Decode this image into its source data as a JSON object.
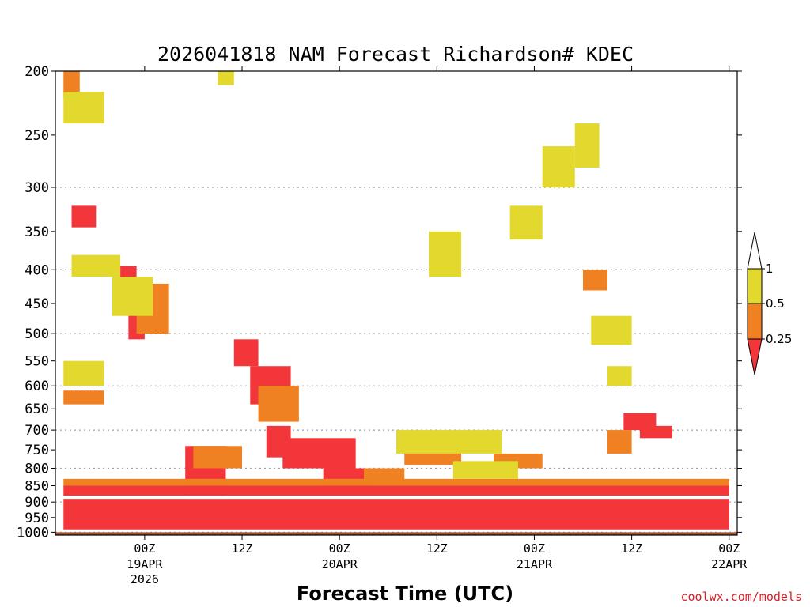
{
  "chart_data": {
    "type": "heatmap",
    "title": "2026041818 NAM Forecast Richardson# KDEC",
    "xlabel": "Forecast Time (UTC)",
    "ylabel": "",
    "credit": "coolwx.com/models",
    "y_axis": {
      "range": [
        200,
        1010
      ],
      "scale": "log-pressure",
      "ticks": [
        "200",
        "250",
        "300",
        "350",
        "400",
        "450",
        "500",
        "550",
        "600",
        "650",
        "700",
        "750",
        "800",
        "850",
        "900",
        "950",
        "1000"
      ],
      "gridlines": [
        300,
        400,
        500,
        600,
        700,
        800,
        900,
        1000
      ]
    },
    "x_axis": {
      "range_hours": [
        -5,
        79
      ],
      "ticks": [
        {
          "hour": 6,
          "label": "00Z",
          "sublabels": [
            "19APR",
            "2026"
          ]
        },
        {
          "hour": 18,
          "label": "12Z",
          "sublabels": []
        },
        {
          "hour": 30,
          "label": "00Z",
          "sublabels": [
            "20APR"
          ]
        },
        {
          "hour": 42,
          "label": "12Z",
          "sublabels": []
        },
        {
          "hour": 54,
          "label": "00Z",
          "sublabels": [
            "21APR"
          ]
        },
        {
          "hour": 66,
          "label": "12Z",
          "sublabels": []
        },
        {
          "hour": 78,
          "label": "00Z",
          "sublabels": [
            "22APR"
          ]
        }
      ]
    },
    "legend": {
      "placement": "right",
      "thresholds": [
        "1",
        "0.5",
        "0.25"
      ],
      "colors": {
        "above_1": "#ffffff",
        "0.5_to_1": "#e3d82d",
        "0.25_to_0.5": "#ef8122",
        "below_0.25": "#f2363a"
      }
    },
    "colors": {
      "ground": "#a0522d",
      "gridline": "#a0a0a0"
    },
    "series": [
      {
        "name": "Ri < 0.25",
        "color": "#f2363a",
        "regions": [
          {
            "hours": [
              -3,
              0
            ],
            "p": [
              320,
              345
            ]
          },
          {
            "hours": [
              3,
              5
            ],
            "p": [
              395,
              445
            ]
          },
          {
            "hours": [
              4,
              6
            ],
            "p": [
              450,
              510
            ]
          },
          {
            "hours": [
              17,
              20
            ],
            "p": [
              510,
              560
            ]
          },
          {
            "hours": [
              19,
              24
            ],
            "p": [
              560,
              640
            ]
          },
          {
            "hours": [
              21,
              24
            ],
            "p": [
              690,
              770
            ]
          },
          {
            "hours": [
              23,
              32
            ],
            "p": [
              720,
              800
            ]
          },
          {
            "hours": [
              28,
              34
            ],
            "p": [
              800,
              870
            ]
          },
          {
            "hours": [
              11,
              16
            ],
            "p": [
              740,
              880
            ]
          },
          {
            "hours": [
              65,
              69
            ],
            "p": [
              660,
              700
            ]
          },
          {
            "hours": [
              67,
              71
            ],
            "p": [
              690,
              720
            ]
          },
          {
            "hours": [
              -4,
              78
            ],
            "p": [
              890,
              990
            ]
          },
          {
            "hours": [
              -4,
              78
            ],
            "p": [
              850,
              880
            ]
          }
        ]
      },
      {
        "name": "0.25 <= Ri < 0.5",
        "color": "#ef8122",
        "regions": [
          {
            "hours": [
              -4,
              -2
            ],
            "p": [
              200,
              220
            ]
          },
          {
            "hours": [
              -4,
              1
            ],
            "p": [
              610,
              640
            ]
          },
          {
            "hours": [
              5,
              9
            ],
            "p": [
              420,
              500
            ]
          },
          {
            "hours": [
              20,
              25
            ],
            "p": [
              600,
              680
            ]
          },
          {
            "hours": [
              12,
              18
            ],
            "p": [
              740,
              800
            ]
          },
          {
            "hours": [
              33,
              38
            ],
            "p": [
              800,
              840
            ]
          },
          {
            "hours": [
              38,
              45
            ],
            "p": [
              740,
              790
            ]
          },
          {
            "hours": [
              49,
              55
            ],
            "p": [
              760,
              800
            ]
          },
          {
            "hours": [
              57,
              58
            ],
            "p": [
              270,
              290
            ]
          },
          {
            "hours": [
              60,
              63
            ],
            "p": [
              400,
              430
            ]
          },
          {
            "hours": [
              63,
              66
            ],
            "p": [
              700,
              760
            ]
          },
          {
            "hours": [
              -4,
              78
            ],
            "p": [
              830,
              850
            ]
          }
        ]
      },
      {
        "name": "0.5 <= Ri < 1",
        "color": "#e3d82d",
        "regions": [
          {
            "hours": [
              -4,
              1
            ],
            "p": [
              215,
              240
            ]
          },
          {
            "hours": [
              -3,
              3
            ],
            "p": [
              380,
              410
            ]
          },
          {
            "hours": [
              2,
              7
            ],
            "p": [
              410,
              470
            ]
          },
          {
            "hours": [
              -4,
              1
            ],
            "p": [
              550,
              600
            ]
          },
          {
            "hours": [
              15,
              17
            ],
            "p": [
              200,
              210
            ]
          },
          {
            "hours": [
              41,
              45
            ],
            "p": [
              350,
              410
            ]
          },
          {
            "hours": [
              51,
              55
            ],
            "p": [
              320,
              360
            ]
          },
          {
            "hours": [
              55,
              59
            ],
            "p": [
              260,
              300
            ]
          },
          {
            "hours": [
              59,
              62
            ],
            "p": [
              240,
              280
            ]
          },
          {
            "hours": [
              61,
              66
            ],
            "p": [
              470,
              520
            ]
          },
          {
            "hours": [
              63,
              66
            ],
            "p": [
              560,
              600
            ]
          },
          {
            "hours": [
              37,
              50
            ],
            "p": [
              700,
              760
            ]
          },
          {
            "hours": [
              44,
              52
            ],
            "p": [
              780,
              830
            ]
          }
        ]
      }
    ]
  }
}
